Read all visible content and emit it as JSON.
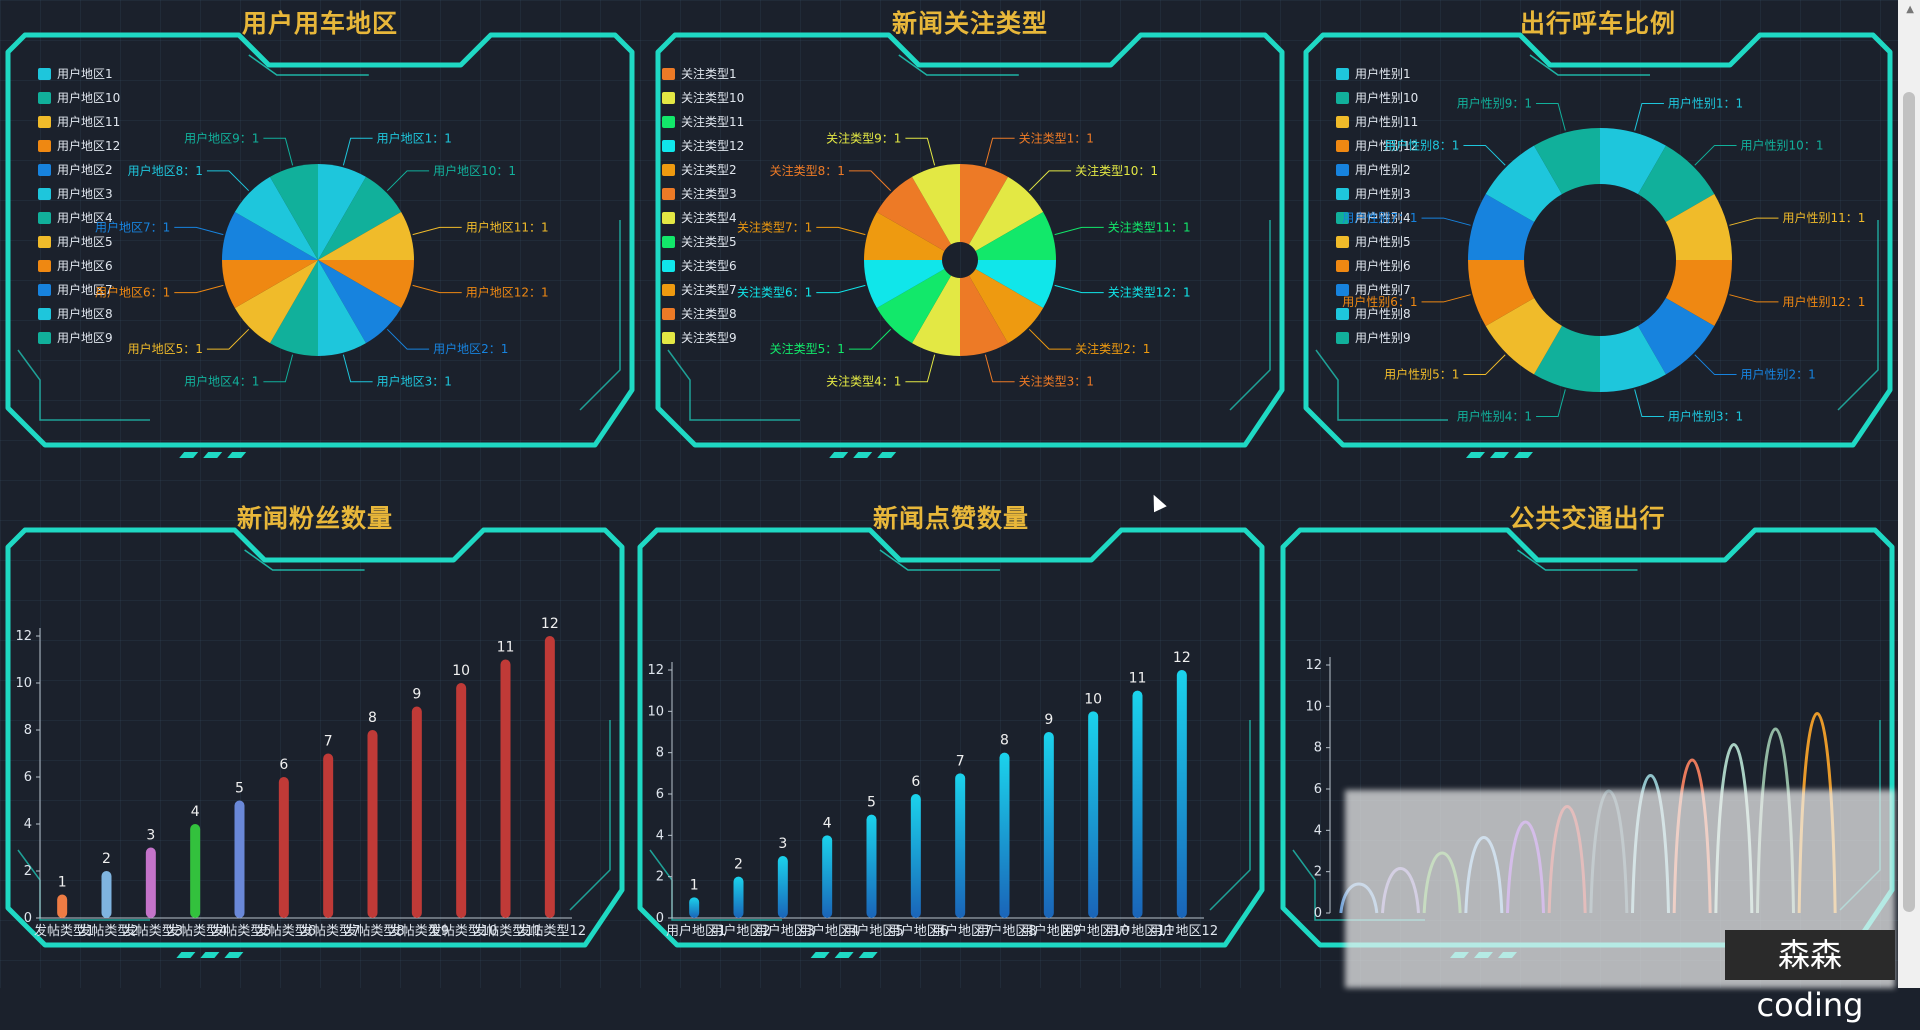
{
  "panels": {
    "p1_title": "用户用车地区",
    "p2_title": "新闻关注类型",
    "p3_title": "出行呼车比例",
    "p4_title": "新闻粉丝数量",
    "p5_title": "新闻点赞数量",
    "p6_title": "公共交通出行"
  },
  "watermark": "森森coding",
  "chart_data": [
    {
      "type": "pie",
      "title": "用户用车地区",
      "legend": [
        "用户地区1",
        "用户地区10",
        "用户地区11",
        "用户地区12",
        "用户地区2",
        "用户地区3",
        "用户地区4",
        "用户地区5",
        "用户地区6",
        "用户地区7",
        "用户地区8",
        "用户地区9"
      ],
      "slices": [
        {
          "label": "用户地区1",
          "value": 1,
          "color": "#1ec6dc"
        },
        {
          "label": "用户地区10",
          "value": 1,
          "color": "#11b09b"
        },
        {
          "label": "用户地区11",
          "value": 1,
          "color": "#f0bb2a"
        },
        {
          "label": "用户地区12",
          "value": 1,
          "color": "#ef8812"
        },
        {
          "label": "用户地区2",
          "value": 1,
          "color": "#1783de"
        },
        {
          "label": "用户地区3",
          "value": 1,
          "color": "#1ec6dc"
        },
        {
          "label": "用户地区4",
          "value": 1,
          "color": "#11b09b"
        },
        {
          "label": "用户地区5",
          "value": 1,
          "color": "#f0bb2a"
        },
        {
          "label": "用户地区6",
          "value": 1,
          "color": "#ef8812"
        },
        {
          "label": "用户地区7",
          "value": 1,
          "color": "#1783de"
        },
        {
          "label": "用户地区8",
          "value": 1,
          "color": "#1ec6dc"
        },
        {
          "label": "用户地区9",
          "value": 1,
          "color": "#11b09b"
        }
      ]
    },
    {
      "type": "pie",
      "title": "新闻关注类型",
      "legend": [
        "关注类型1",
        "关注类型10",
        "关注类型11",
        "关注类型12",
        "关注类型2",
        "关注类型3",
        "关注类型4",
        "关注类型5",
        "关注类型6",
        "关注类型7",
        "关注类型8",
        "关注类型9"
      ],
      "slices": [
        {
          "label": "关注类型1",
          "value": 1,
          "color": "#ed7a26"
        },
        {
          "label": "关注类型10",
          "value": 1,
          "color": "#e3e844"
        },
        {
          "label": "关注类型11",
          "value": 1,
          "color": "#12e86a"
        },
        {
          "label": "关注类型12",
          "value": 1,
          "color": "#10e6ea"
        },
        {
          "label": "关注类型2",
          "value": 1,
          "color": "#ee9a10"
        },
        {
          "label": "关注类型3",
          "value": 1,
          "color": "#ed7a26"
        },
        {
          "label": "关注类型4",
          "value": 1,
          "color": "#e3e844"
        },
        {
          "label": "关注类型5",
          "value": 1,
          "color": "#12e86a"
        },
        {
          "label": "关注类型6",
          "value": 1,
          "color": "#10e6ea"
        },
        {
          "label": "关注类型7",
          "value": 1,
          "color": "#ee9a10"
        },
        {
          "label": "关注类型8",
          "value": 1,
          "color": "#ed7a26"
        },
        {
          "label": "关注类型9",
          "value": 1,
          "color": "#e3e844"
        }
      ]
    },
    {
      "type": "pie",
      "title": "出行呼车比例",
      "legend": [
        "用户性别1",
        "用户性别10",
        "用户性别11",
        "用户性别12",
        "用户性别2",
        "用户性别3",
        "用户性别4",
        "用户性别5",
        "用户性别6",
        "用户性别7",
        "用户性别8",
        "用户性别9"
      ],
      "slices": [
        {
          "label": "用户性别1",
          "value": 1,
          "color": "#1ec6dc"
        },
        {
          "label": "用户性别10",
          "value": 1,
          "color": "#11b09b"
        },
        {
          "label": "用户性别11",
          "value": 1,
          "color": "#f0bb2a"
        },
        {
          "label": "用户性别12",
          "value": 1,
          "color": "#ef8812"
        },
        {
          "label": "用户性别2",
          "value": 1,
          "color": "#1783de"
        },
        {
          "label": "用户性别3",
          "value": 1,
          "color": "#1ec6dc"
        },
        {
          "label": "用户性别4",
          "value": 1,
          "color": "#11b09b"
        },
        {
          "label": "用户性别5",
          "value": 1,
          "color": "#f0bb2a"
        },
        {
          "label": "用户性别6",
          "value": 1,
          "color": "#ef8812"
        },
        {
          "label": "用户性别7",
          "value": 1,
          "color": "#1783de"
        },
        {
          "label": "用户性别8",
          "value": 1,
          "color": "#1ec6dc"
        },
        {
          "label": "用户性别9",
          "value": 1,
          "color": "#11b09b"
        }
      ]
    },
    {
      "type": "bar",
      "title": "新闻粉丝数量",
      "categories": [
        "发帖类型1",
        "发帖类型2",
        "发帖类型3",
        "发帖类型4",
        "发帖类型5",
        "发帖类型6",
        "发帖类型7",
        "发帖类型8",
        "发帖类型9",
        "发帖类型10",
        "发帖类型11",
        "发帖类型12"
      ],
      "values": [
        1,
        2,
        3,
        4,
        5,
        6,
        7,
        8,
        9,
        10,
        11,
        12
      ],
      "colors": [
        "#ee7c44",
        "#7fb4e0",
        "#c473c9",
        "#33c13d",
        "#6a88d8",
        "#c03a37",
        "#c03a37",
        "#c03a37",
        "#c03a37",
        "#c03a37",
        "#c03a37",
        "#c03a37"
      ],
      "ylim": [
        0,
        12
      ],
      "yticks": [
        0,
        2,
        4,
        6,
        8,
        10,
        12
      ]
    },
    {
      "type": "bar",
      "title": "新闻点赞数量",
      "categories": [
        "用户地区1",
        "用户地区2",
        "用户地区3",
        "用户地区4",
        "用户地区5",
        "用户地区6",
        "用户地区7",
        "用户地区8",
        "用户地区9",
        "用户地区10",
        "用户地区11",
        "用户地区12"
      ],
      "values": [
        1,
        2,
        3,
        4,
        5,
        6,
        7,
        8,
        9,
        10,
        11,
        12
      ],
      "colors": [
        "#1bd3ec"
      ],
      "ylim": [
        0,
        12
      ],
      "yticks": [
        0,
        2,
        4,
        6,
        8,
        10,
        12
      ]
    },
    {
      "type": "line",
      "title": "公共交通出行",
      "values": [
        1,
        2,
        3,
        4,
        5,
        6,
        7,
        8,
        9,
        10,
        11,
        12
      ],
      "colors": [
        "#6fa0d8",
        "#8e7cc3",
        "#5fa848",
        "#7fb4e0",
        "#8e3bd6",
        "#c03a37",
        "#506b77",
        "#8fc2c9",
        "#e87a5c",
        "#a9d0c3",
        "#92b8a3",
        "#e89a2a"
      ],
      "ylim": [
        0,
        12
      ],
      "yticks": [
        0,
        2,
        4,
        6,
        8,
        10,
        12
      ]
    }
  ]
}
